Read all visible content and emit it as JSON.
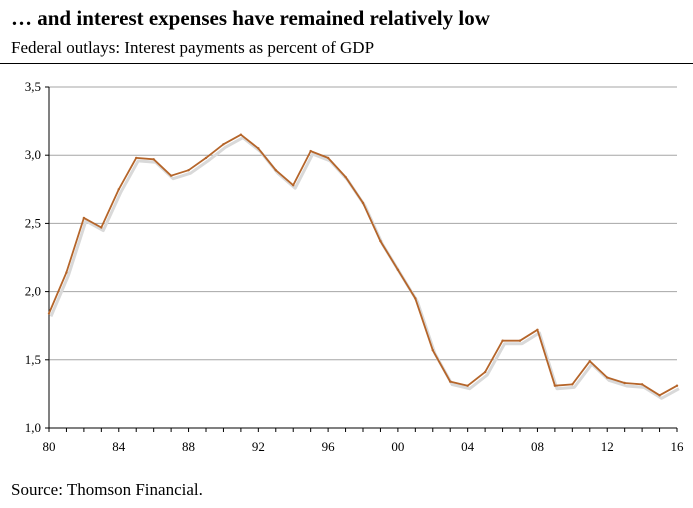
{
  "header": {
    "title": "… and interest expenses have remained relatively low",
    "subtitle": "Federal outlays: Interest payments as percent of GDP"
  },
  "footer": {
    "source": "Source: Thomson Financial."
  },
  "colors": {
    "line": "#b5652a",
    "shadow": "#d9d9d9",
    "grid": "#a6a6a6",
    "axis": "#000000"
  },
  "chart_data": {
    "type": "line",
    "title": "",
    "xlabel": "",
    "ylabel": "",
    "xlim": [
      1980,
      2016
    ],
    "ylim": [
      1.0,
      3.5
    ],
    "grid": "horizontal",
    "legend": "none",
    "x_tick_values": [
      1980,
      1984,
      1988,
      1992,
      1996,
      2000,
      2004,
      2008,
      2012,
      2016
    ],
    "x_tick_labels": [
      "80",
      "84",
      "88",
      "92",
      "96",
      "00",
      "04",
      "08",
      "12",
      "16"
    ],
    "y_tick_values": [
      1.0,
      1.5,
      2.0,
      2.5,
      3.0,
      3.5
    ],
    "y_tick_labels": [
      "1,0",
      "1,5",
      "2,0",
      "2,5",
      "3,0",
      "3,5"
    ],
    "series": [
      {
        "x": [
          1980,
          1981,
          1982,
          1983,
          1984,
          1985,
          1986,
          1987,
          1988,
          1989,
          1990,
          1991,
          1992,
          1993,
          1994,
          1995,
          1996,
          1997,
          1998,
          1999,
          2000,
          2001,
          2002,
          2003,
          2004,
          2005,
          2006,
          2007,
          2008,
          2009,
          2010,
          2011,
          2012,
          2013,
          2014,
          2015,
          2016
        ],
        "values": [
          1.84,
          2.14,
          2.54,
          2.47,
          2.75,
          2.98,
          2.97,
          2.85,
          2.89,
          2.98,
          3.08,
          3.15,
          3.05,
          2.89,
          2.78,
          3.03,
          2.98,
          2.84,
          2.65,
          2.37,
          2.16,
          1.95,
          1.57,
          1.34,
          1.31,
          1.41,
          1.64,
          1.64,
          1.72,
          1.31,
          1.32,
          1.49,
          1.37,
          1.33,
          1.32,
          1.24,
          1.31
        ]
      }
    ]
  }
}
